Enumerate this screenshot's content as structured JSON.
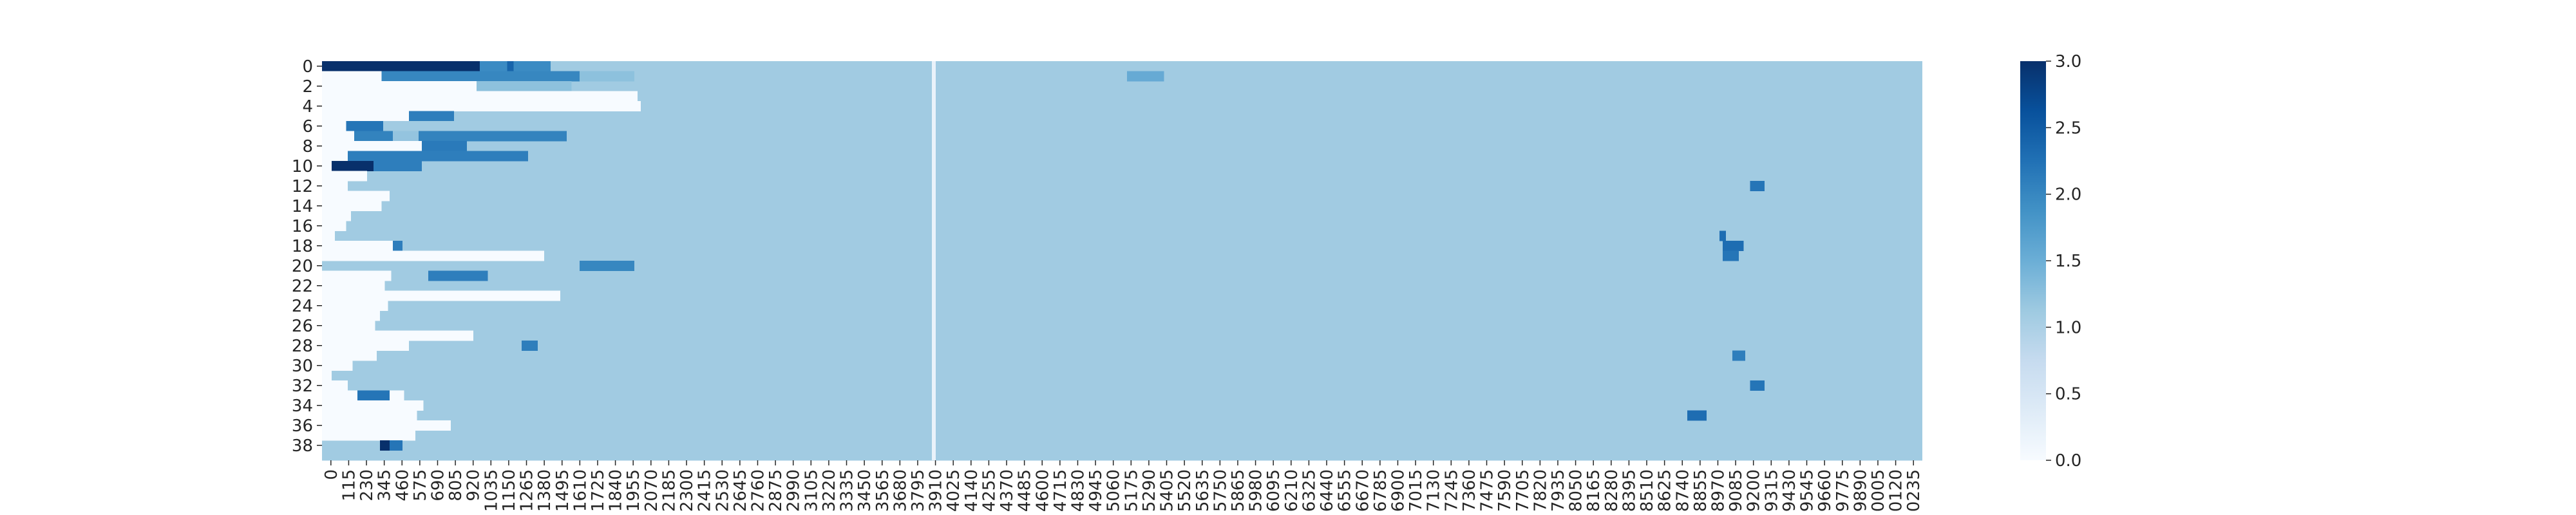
{
  "chart_data": {
    "type": "heatmap",
    "title": "",
    "xlabel": "",
    "ylabel": "",
    "colormap": "Blues",
    "color_range": [
      0,
      3
    ],
    "colorbar": {
      "ticks": [
        0,
        0.5,
        1,
        1.5,
        2,
        2.5,
        3
      ],
      "tick_labels": [
        "0.0",
        "0.5",
        "1.0",
        "1.5",
        "2.0",
        "2.5",
        "3.0"
      ]
    },
    "rows": 40,
    "y_tick_labels": [
      "0",
      "2",
      "4",
      "6",
      "8",
      "10",
      "12",
      "14",
      "16",
      "18",
      "20",
      "22",
      "24",
      "26",
      "28",
      "30",
      "32",
      "34",
      "36",
      "38"
    ],
    "x_tick_labels": [
      "0",
      "115",
      "230",
      "345",
      "460",
      "575",
      "690",
      "805",
      "920",
      "1035",
      "1150",
      "1265",
      "1380",
      "1495",
      "1610",
      "1725",
      "1840",
      "1955",
      "2070",
      "2185",
      "2300",
      "2415",
      "2530",
      "2645",
      "2760",
      "2875",
      "2990",
      "3105",
      "3220",
      "3335",
      "3450",
      "3565",
      "3680",
      "3795",
      "3910",
      "4025",
      "4140",
      "4255",
      "4370",
      "4485",
      "4600",
      "4715",
      "4830",
      "4945",
      "5060",
      "5175",
      "5290",
      "5405",
      "5520",
      "5635",
      "5750",
      "5865",
      "5980",
      "6095",
      "6210",
      "6325",
      "6440",
      "6555",
      "6670",
      "6785",
      "6900",
      "7015",
      "7130",
      "7245",
      "7360",
      "7475",
      "7590",
      "7705",
      "7820",
      "7935",
      "8050",
      "8165",
      "8280",
      "8395",
      "8510",
      "8625",
      "8740",
      "8855",
      "8970",
      "9085",
      "9200",
      "9315",
      "9430",
      "9545",
      "9660",
      "9775",
      "9890",
      "0005",
      "0120",
      "0235"
    ],
    "background_value": 1.1,
    "row_fill_start_x": [
      0,
      650,
      0,
      1960,
      0,
      0,
      0,
      0,
      0,
      0,
      0,
      0,
      280,
      420,
      370,
      180,
      150,
      0,
      0,
      0,
      0,
      560,
      430,
      390,
      860,
      410,
      360,
      330,
      940,
      540,
      340,
      190,
      60,
      0,
      160,
      510,
      630,
      590,
      800,
      580
    ],
    "highlights": [
      {
        "row": 0,
        "x": [
          0,
          980
        ],
        "value": 3.0
      },
      {
        "row": 0,
        "x": [
          980,
          1420
        ],
        "value": 1.95
      },
      {
        "row": 0,
        "x": [
          1150,
          1190
        ],
        "value": 2.4
      },
      {
        "row": 1,
        "x": [
          370,
          1600
        ],
        "value": 2.0
      },
      {
        "row": 1,
        "x": [
          0,
          370
        ],
        "value": 0.0
      },
      {
        "row": 1,
        "x": [
          1600,
          1940
        ],
        "value": 1.25
      },
      {
        "row": 1,
        "x": [
          5000,
          5230
        ],
        "value": 1.55
      },
      {
        "row": 2,
        "x": [
          0,
          960
        ],
        "value": 0.0
      },
      {
        "row": 2,
        "x": [
          960,
          1550
        ],
        "value": 1.25
      },
      {
        "row": 3,
        "x": [
          0,
          1550
        ],
        "value": 0.0
      },
      {
        "row": 3,
        "x": [
          1550,
          1960
        ],
        "value": 0.0
      },
      {
        "row": 4,
        "x": [
          0,
          1980
        ],
        "value": 0.0
      },
      {
        "row": 5,
        "x": [
          0,
          540
        ],
        "value": 0.0
      },
      {
        "row": 5,
        "x": [
          540,
          820
        ],
        "value": 2.1
      },
      {
        "row": 6,
        "x": [
          0,
          150
        ],
        "value": 0.0
      },
      {
        "row": 6,
        "x": [
          150,
          380
        ],
        "value": 2.2
      },
      {
        "row": 6,
        "x": [
          380,
          1440
        ],
        "value": 1.1
      },
      {
        "row": 7,
        "x": [
          0,
          200
        ],
        "value": 0.0
      },
      {
        "row": 7,
        "x": [
          200,
          1520
        ],
        "value": 2.05
      },
      {
        "row": 7,
        "x": [
          440,
          600
        ],
        "value": 1.2
      },
      {
        "row": 8,
        "x": [
          0,
          620
        ],
        "value": 0.0
      },
      {
        "row": 8,
        "x": [
          620,
          900
        ],
        "value": 2.15
      },
      {
        "row": 9,
        "x": [
          0,
          160
        ],
        "value": 0.0
      },
      {
        "row": 9,
        "x": [
          160,
          1280
        ],
        "value": 2.1
      },
      {
        "row": 10,
        "x": [
          0,
          60
        ],
        "value": 0.0
      },
      {
        "row": 10,
        "x": [
          60,
          320
        ],
        "value": 3.0
      },
      {
        "row": 10,
        "x": [
          320,
          620
        ],
        "value": 2.1
      },
      {
        "row": 11,
        "x": [
          0,
          280
        ],
        "value": 0.0
      },
      {
        "row": 12,
        "x": [
          0,
          160
        ],
        "value": 0.0
      },
      {
        "row": 12,
        "x": [
          8870,
          8960
        ],
        "value": 2.2
      },
      {
        "row": 13,
        "x": [
          0,
          420
        ],
        "value": 0.0
      },
      {
        "row": 14,
        "x": [
          0,
          370
        ],
        "value": 0.0
      },
      {
        "row": 15,
        "x": [
          0,
          180
        ],
        "value": 0.0
      },
      {
        "row": 16,
        "x": [
          0,
          150
        ],
        "value": 0.0
      },
      {
        "row": 17,
        "x": [
          0,
          80
        ],
        "value": 0.0
      },
      {
        "row": 17,
        "x": [
          8680,
          8720
        ],
        "value": 2.3
      },
      {
        "row": 18,
        "x": [
          0,
          440
        ],
        "value": 0.0
      },
      {
        "row": 18,
        "x": [
          440,
          500
        ],
        "value": 2.1
      },
      {
        "row": 18,
        "x": [
          8700,
          8830
        ],
        "value": 2.3
      },
      {
        "row": 19,
        "x": [
          0,
          560
        ],
        "value": 0.0
      },
      {
        "row": 19,
        "x": [
          560,
          1380
        ],
        "value": 0.0
      },
      {
        "row": 19,
        "x": [
          8700,
          8800
        ],
        "value": 2.2
      },
      {
        "row": 20,
        "x": [
          1600,
          1940
        ],
        "value": 2.0
      },
      {
        "row": 21,
        "x": [
          0,
          430
        ],
        "value": 0.0
      },
      {
        "row": 21,
        "x": [
          660,
          1030
        ],
        "value": 2.1
      },
      {
        "row": 22,
        "x": [
          0,
          390
        ],
        "value": 0.0
      },
      {
        "row": 23,
        "x": [
          0,
          860
        ],
        "value": 0.0
      },
      {
        "row": 23,
        "x": [
          860,
          1260
        ],
        "value": 0.0
      },
      {
        "row": 23,
        "x": [
          1260,
          1480
        ],
        "value": 0.0
      },
      {
        "row": 24,
        "x": [
          0,
          410
        ],
        "value": 0.0
      },
      {
        "row": 25,
        "x": [
          0,
          360
        ],
        "value": 0.0
      },
      {
        "row": 26,
        "x": [
          0,
          330
        ],
        "value": 0.0
      },
      {
        "row": 27,
        "x": [
          0,
          940
        ],
        "value": 0.0
      },
      {
        "row": 28,
        "x": [
          0,
          540
        ],
        "value": 0.0
      },
      {
        "row": 28,
        "x": [
          1240,
          1340
        ],
        "value": 2.1
      },
      {
        "row": 29,
        "x": [
          0,
          340
        ],
        "value": 0.0
      },
      {
        "row": 29,
        "x": [
          8760,
          8840
        ],
        "value": 2.1
      },
      {
        "row": 30,
        "x": [
          0,
          190
        ],
        "value": 0.0
      },
      {
        "row": 31,
        "x": [
          0,
          60
        ],
        "value": 0.0
      },
      {
        "row": 32,
        "x": [
          0,
          160
        ],
        "value": 0.0
      },
      {
        "row": 32,
        "x": [
          8870,
          8960
        ],
        "value": 2.2
      },
      {
        "row": 33,
        "x": [
          0,
          510
        ],
        "value": 0.0
      },
      {
        "row": 33,
        "x": [
          220,
          420
        ],
        "value": 2.2
      },
      {
        "row": 34,
        "x": [
          0,
          630
        ],
        "value": 0.0
      },
      {
        "row": 35,
        "x": [
          0,
          590
        ],
        "value": 0.0
      },
      {
        "row": 35,
        "x": [
          8480,
          8600
        ],
        "value": 2.3
      },
      {
        "row": 36,
        "x": [
          0,
          800
        ],
        "value": 0.0
      },
      {
        "row": 37,
        "x": [
          0,
          580
        ],
        "value": 0.0
      },
      {
        "row": 38,
        "x": [
          360,
          420
        ],
        "value": 3.0
      },
      {
        "row": 38,
        "x": [
          420,
          500
        ],
        "value": 2.2
      }
    ]
  }
}
